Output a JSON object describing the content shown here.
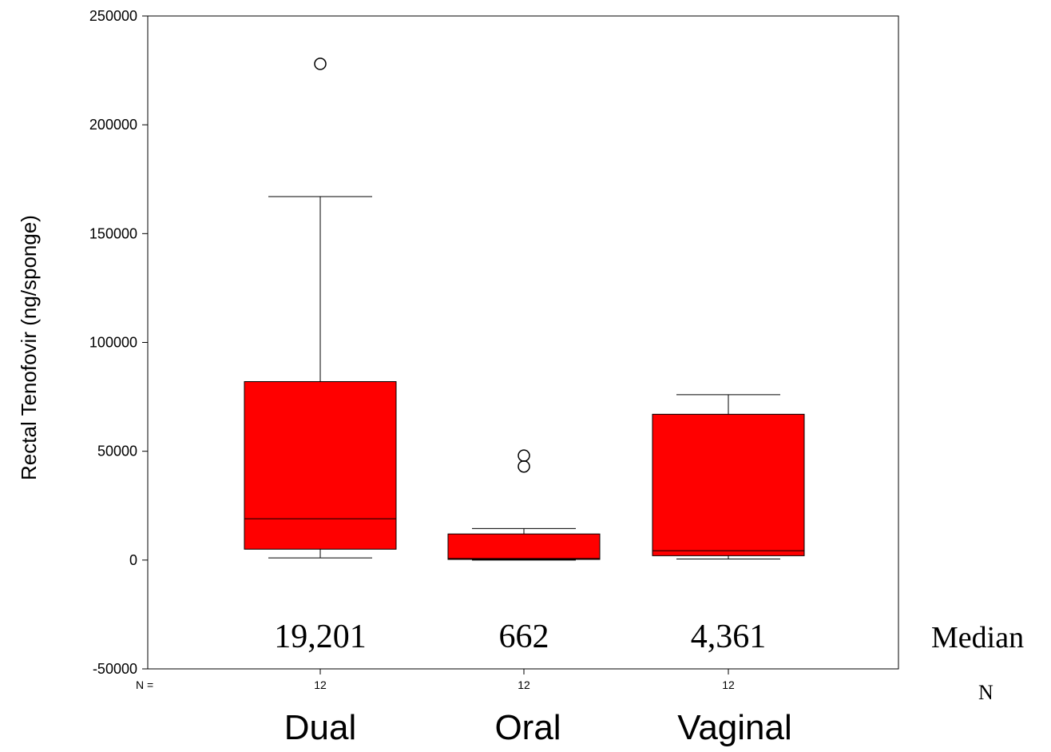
{
  "chart_data": {
    "type": "box",
    "ylabel": "Rectal Tenofovir (ng/sponge)",
    "ylim": [
      -50000,
      250000
    ],
    "yticks": [
      {
        "value": 250000,
        "label": "250000"
      },
      {
        "value": 200000,
        "label": "200000"
      },
      {
        "value": 150000,
        "label": "150000"
      },
      {
        "value": 100000,
        "label": "100000"
      },
      {
        "value": 50000,
        "label": "50000"
      },
      {
        "value": 0,
        "label": "0"
      },
      {
        "value": -50000,
        "label": "-50000"
      }
    ],
    "categories": [
      "Dual",
      "Oral",
      "Vaginal"
    ],
    "n_prefix": "N =",
    "n_values": [
      "12",
      "12",
      "12"
    ],
    "box_color": "#ff0000",
    "boxes": [
      {
        "category": "Dual",
        "whisker_low": 1000,
        "q1": 5000,
        "median": 19000,
        "q3": 82000,
        "whisker_high": 167000,
        "outliers": [
          228000
        ]
      },
      {
        "category": "Oral",
        "whisker_low": 0,
        "q1": 300,
        "median": 700,
        "q3": 12000,
        "whisker_high": 14500,
        "outliers": [
          48000,
          43000
        ]
      },
      {
        "category": "Vaginal",
        "whisker_low": 500,
        "q1": 2000,
        "median": 4300,
        "q3": 67000,
        "whisker_high": 76000,
        "outliers": []
      }
    ],
    "median_labels": [
      "19,201",
      "662",
      "4,361"
    ],
    "median_row_label": "Median",
    "n_row_label": "N"
  }
}
